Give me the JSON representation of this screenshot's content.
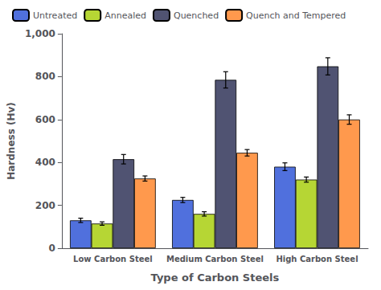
{
  "chart_data": {
    "type": "bar",
    "categories": [
      "Low Carbon Steel",
      "Medium Carbon Steel",
      "High Carbon Steel"
    ],
    "series": [
      {
        "name": "Untreated",
        "values": [
          130,
          225,
          380
        ],
        "errors": [
          10,
          12,
          18
        ]
      },
      {
        "name": "Annealed",
        "values": [
          115,
          160,
          320
        ],
        "errors": [
          8,
          10,
          12
        ]
      },
      {
        "name": "Quenched",
        "values": [
          415,
          785,
          848
        ],
        "errors": [
          22,
          38,
          40
        ]
      },
      {
        "name": "Quench and Tempered",
        "values": [
          325,
          445,
          600
        ],
        "errors": [
          12,
          15,
          22
        ]
      }
    ],
    "xlabel": "Type of Carbon Steels",
    "ylabel": "Hardness (Hv)",
    "ylim": [
      0,
      1000
    ],
    "yticks": [
      0,
      200,
      400,
      600,
      800,
      1000
    ],
    "grid": false,
    "legend": "upper left"
  }
}
